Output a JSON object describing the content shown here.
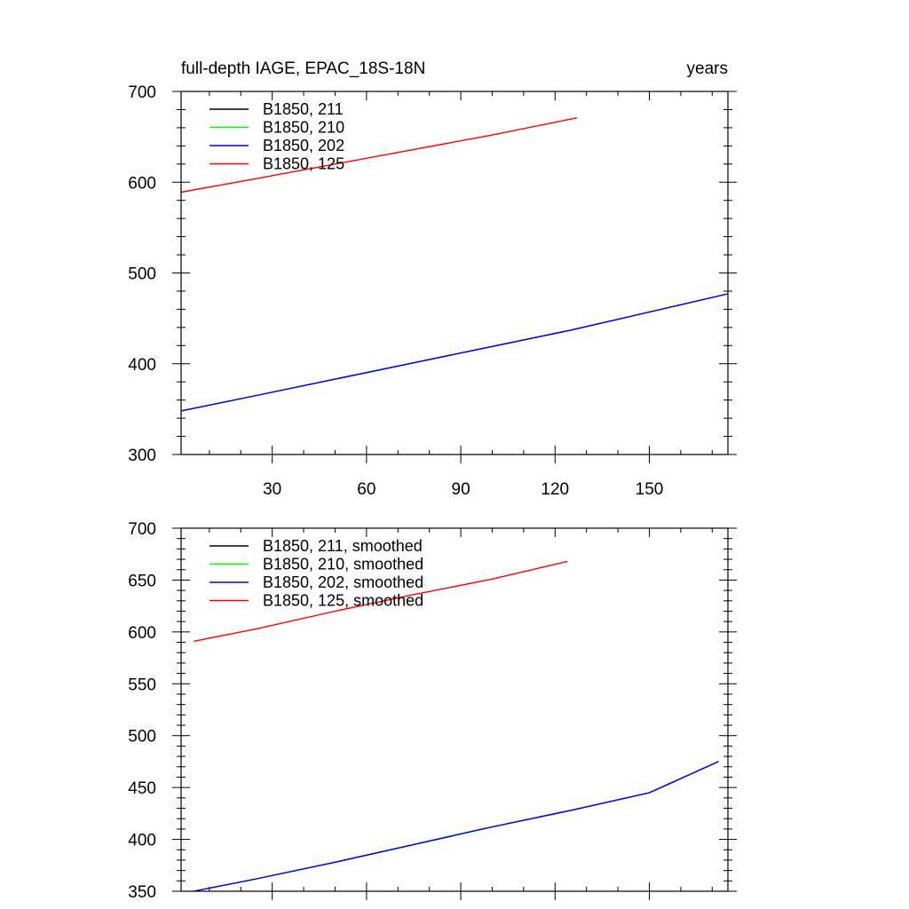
{
  "colors": {
    "211": "#000000",
    "210": "#00ff00",
    "202": "#0000ff",
    "125": "#ff0000"
  },
  "chart_data": [
    {
      "type": "line",
      "title": "full-depth IAGE, EPAC_18S-18N",
      "units": "years",
      "xlim": [
        1,
        175
      ],
      "ylim": [
        300,
        700
      ],
      "xticks": [
        30,
        60,
        90,
        120,
        150
      ],
      "xtick_labels": [
        "30",
        "60",
        "90",
        "120",
        "150"
      ],
      "yticks": [
        300,
        400,
        500,
        600,
        700
      ],
      "ytick_labels": [
        "300",
        "400",
        "500",
        "600",
        "700"
      ],
      "xlabels_visible": true,
      "legend_position": "top-left",
      "series": [
        {
          "name": "B1850, 211",
          "color": "#000000",
          "x": [
            1,
            25,
            50,
            75,
            100,
            125,
            150,
            175
          ],
          "y": [
            348,
            365,
            383,
            401,
            419,
            437,
            457,
            477
          ]
        },
        {
          "name": "B1850, 210",
          "color": "#00ff00",
          "x": [
            1,
            25,
            50,
            75,
            100
          ],
          "y": [
            348,
            365,
            383,
            401,
            419
          ]
        },
        {
          "name": "B1850, 202",
          "color": "#0000ff",
          "x": [
            1,
            25,
            50,
            75,
            100,
            125,
            150,
            175
          ],
          "y": [
            348,
            365,
            383,
            401,
            419,
            437,
            457,
            477
          ]
        },
        {
          "name": "B1850, 125",
          "color": "#ff0000",
          "x": [
            1,
            25,
            50,
            75,
            100,
            127
          ],
          "y": [
            589,
            604,
            620,
            636,
            652,
            671
          ]
        }
      ]
    },
    {
      "type": "line",
      "title": "",
      "units": "",
      "xlim": [
        1,
        175
      ],
      "ylim": [
        350,
        700
      ],
      "xticks": [
        30,
        60,
        90,
        120,
        150
      ],
      "xtick_labels": [
        "",
        "",
        "",
        "",
        ""
      ],
      "yticks": [
        350,
        400,
        450,
        500,
        550,
        600,
        650,
        700
      ],
      "ytick_labels": [
        "350",
        "400",
        "450",
        "500",
        "550",
        "600",
        "650",
        "700"
      ],
      "xlabels_visible": false,
      "legend_position": "top-left",
      "series": [
        {
          "name": "B1850, 211, smoothed",
          "color": "#000000",
          "x": [
            5,
            25,
            50,
            75,
            100,
            125,
            150,
            172
          ],
          "y": [
            350,
            362,
            378,
            395,
            412,
            428,
            445,
            475
          ]
        },
        {
          "name": "B1850, 210, smoothed",
          "color": "#00ff00",
          "x": [
            5,
            25,
            50,
            75,
            98
          ],
          "y": [
            350,
            362,
            378,
            395,
            411
          ]
        },
        {
          "name": "B1850, 202, smoothed",
          "color": "#0000ff",
          "x": [
            5,
            25,
            50,
            75,
            100,
            125,
            150,
            172
          ],
          "y": [
            350,
            362,
            378,
            395,
            412,
            428,
            445,
            475
          ]
        },
        {
          "name": "B1850, 125, smoothed",
          "color": "#ff0000",
          "x": [
            5,
            25,
            50,
            75,
            100,
            124
          ],
          "y": [
            591,
            603,
            620,
            636,
            651,
            668
          ]
        }
      ]
    }
  ]
}
